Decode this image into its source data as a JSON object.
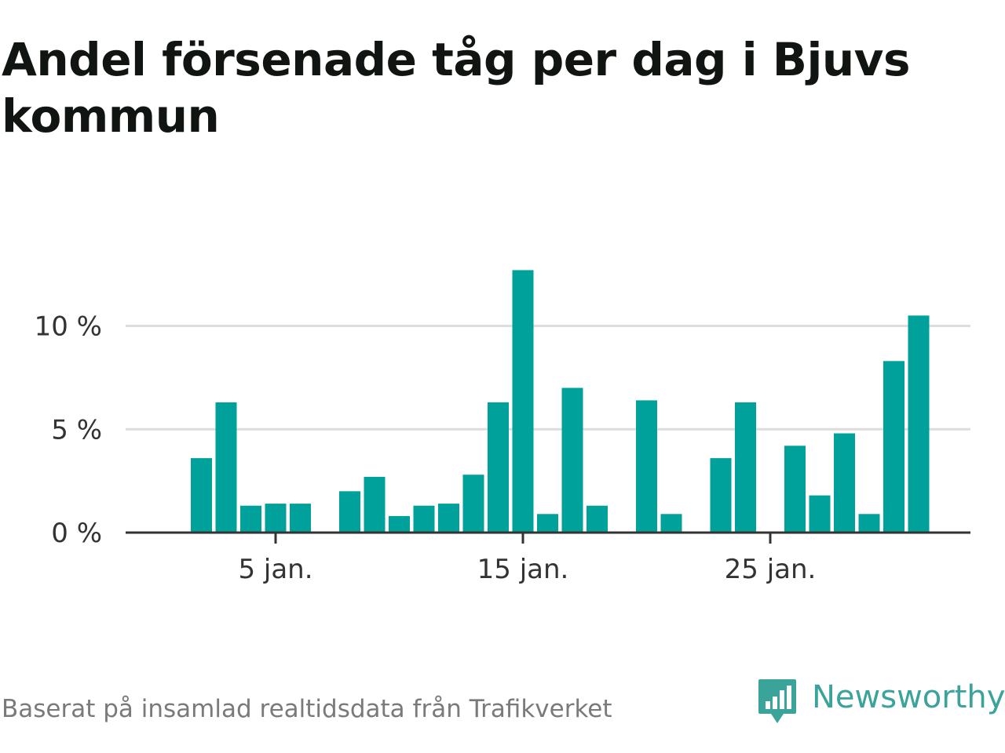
{
  "title": "Andel försenade tåg per dag i Bjuvs kommun",
  "source": "Baserat på insamlad realtidsdata från Trafikverket",
  "brand": {
    "name": "Newsworthy",
    "icon": "bar-chart-speech-bubble-icon",
    "color": "#3aa39a"
  },
  "colors": {
    "bar": "#00a19a",
    "grid": "#dddddd",
    "axis": "#333333"
  },
  "chart_data": {
    "type": "bar",
    "title": "Andel försenade tåg per dag i Bjuvs kommun",
    "xlabel": "",
    "ylabel": "",
    "unit": "%",
    "ylim": [
      0,
      13
    ],
    "grid": true,
    "yticks": [
      {
        "value": 0,
        "label": "0 %"
      },
      {
        "value": 5,
        "label": "5 %"
      },
      {
        "value": 10,
        "label": "10 %"
      }
    ],
    "xticks": [
      {
        "day": 5,
        "label": "5 jan."
      },
      {
        "day": 15,
        "label": "15 jan."
      },
      {
        "day": 25,
        "label": "25 jan."
      }
    ],
    "categories": [
      "2 jan.",
      "3 jan.",
      "4 jan.",
      "5 jan.",
      "6 jan.",
      "7 jan.",
      "8 jan.",
      "9 jan.",
      "10 jan.",
      "11 jan.",
      "12 jan.",
      "13 jan.",
      "14 jan.",
      "15 jan.",
      "16 jan.",
      "17 jan.",
      "18 jan.",
      "19 jan.",
      "20 jan.",
      "21 jan.",
      "22 jan.",
      "23 jan.",
      "24 jan.",
      "25 jan.",
      "26 jan.",
      "27 jan.",
      "28 jan.",
      "29 jan.",
      "30 jan.",
      "31 jan."
    ],
    "days": [
      2,
      3,
      4,
      5,
      6,
      7,
      8,
      9,
      10,
      11,
      12,
      13,
      14,
      15,
      16,
      17,
      18,
      19,
      20,
      21,
      22,
      23,
      24,
      25,
      26,
      27,
      28,
      29,
      30,
      31
    ],
    "values": [
      3.6,
      6.3,
      1.3,
      1.4,
      1.4,
      0,
      2.0,
      2.7,
      0.8,
      1.3,
      1.4,
      2.8,
      6.3,
      12.7,
      0.9,
      7.0,
      1.3,
      0,
      6.4,
      0.9,
      0,
      3.6,
      6.3,
      0,
      4.2,
      1.8,
      4.8,
      0.9,
      8.3,
      10.5
    ]
  }
}
